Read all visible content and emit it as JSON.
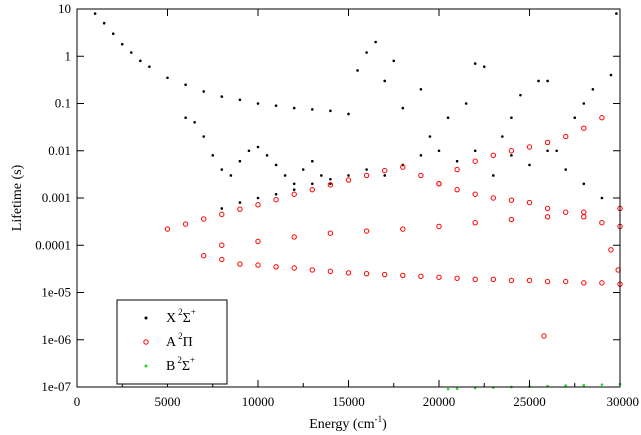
{
  "chart_data": {
    "type": "scatter",
    "title": "",
    "xlabel": "Energy (cm",
    "xlabel_sup": "-1",
    "xlabel_close": ")",
    "ylabel": "Lifetime (s)",
    "xlim": [
      0,
      30000
    ],
    "ylim": [
      1e-07,
      10
    ],
    "yscale": "log",
    "grid": false,
    "legend_position": "bottom-left",
    "x_ticks": [
      {
        "value": 0,
        "label": "0"
      },
      {
        "value": 5000,
        "label": "5000"
      },
      {
        "value": 10000,
        "label": "10000"
      },
      {
        "value": 15000,
        "label": "15000"
      },
      {
        "value": 20000,
        "label": "20000"
      },
      {
        "value": 25000,
        "label": "25000"
      },
      {
        "value": 30000,
        "label": "30000"
      }
    ],
    "y_ticks": [
      {
        "value": 1e-07,
        "label": "1e-07"
      },
      {
        "value": 1e-06,
        "label": "1e-06"
      },
      {
        "value": 1e-05,
        "label": "1e-05"
      },
      {
        "value": 0.0001,
        "label": "0.0001"
      },
      {
        "value": 0.001,
        "label": "0.001"
      },
      {
        "value": 0.01,
        "label": "0.01"
      },
      {
        "value": 0.1,
        "label": "0.1"
      },
      {
        "value": 1,
        "label": "1"
      },
      {
        "value": 10,
        "label": "10"
      }
    ],
    "series": [
      {
        "name": "X",
        "name_sup_left": "2",
        "name_symbol": "Σ",
        "name_sup_right": "+",
        "color": "#000000",
        "marker": "dot",
        "x": [
          1000,
          1500,
          2000,
          2500,
          3000,
          3500,
          4000,
          5000,
          6000,
          7000,
          8000,
          9000,
          10000,
          11000,
          12000,
          13000,
          14000,
          15000,
          6000,
          6500,
          7000,
          7500,
          8000,
          8500,
          9000,
          9500,
          10000,
          10500,
          11000,
          11500,
          12000,
          12500,
          13000,
          13500,
          14000,
          8000,
          9000,
          10000,
          11000,
          12000,
          13000,
          14000,
          15000,
          16000,
          17000,
          18000,
          19000,
          20000,
          21000,
          22000,
          23000,
          24000,
          25000,
          26000,
          27000,
          28000,
          29000,
          15500,
          16000,
          17000,
          18000,
          19000,
          20500,
          21500,
          22500,
          23500,
          24500,
          25500,
          26500,
          27500,
          28500,
          29500,
          16500,
          17500,
          19500,
          22000,
          24000,
          26000,
          28000,
          29800
        ],
        "y": [
          8,
          5,
          3,
          1.8,
          1.2,
          0.8,
          0.6,
          0.35,
          0.25,
          0.18,
          0.14,
          0.12,
          0.1,
          0.09,
          0.08,
          0.075,
          0.07,
          0.06,
          0.05,
          0.04,
          0.02,
          0.008,
          0.004,
          0.003,
          0.006,
          0.01,
          0.012,
          0.008,
          0.005,
          0.003,
          0.002,
          0.004,
          0.006,
          0.003,
          0.002,
          0.0006,
          0.0008,
          0.001,
          0.0012,
          0.0015,
          0.002,
          0.0025,
          0.003,
          0.004,
          0.003,
          0.005,
          0.008,
          0.01,
          0.006,
          0.01,
          0.003,
          0.008,
          0.005,
          0.01,
          0.004,
          0.002,
          0.001,
          0.5,
          1.2,
          0.3,
          0.08,
          0.2,
          0.05,
          0.1,
          0.6,
          0.02,
          0.15,
          0.3,
          0.01,
          0.05,
          0.2,
          0.4,
          2,
          0.8,
          0.02,
          0.7,
          0.05,
          0.3,
          0.1,
          8
        ]
      },
      {
        "name": "A",
        "name_sup_left": "2",
        "name_symbol": "Π",
        "name_sup_right": "",
        "color": "#ff0000",
        "marker": "circle",
        "x": [
          5000,
          6000,
          7000,
          8000,
          9000,
          10000,
          11000,
          12000,
          13000,
          14000,
          15000,
          16000,
          17000,
          18000,
          19000,
          20000,
          21000,
          22000,
          23000,
          24000,
          25000,
          26000,
          27000,
          28000,
          29000,
          30000,
          7000,
          8000,
          9000,
          10000,
          11000,
          12000,
          13000,
          14000,
          15000,
          16000,
          17000,
          18000,
          19000,
          20000,
          21000,
          22000,
          23000,
          24000,
          25000,
          26000,
          27000,
          28000,
          29000,
          30000,
          8000,
          10000,
          12000,
          14000,
          16000,
          18000,
          20000,
          22000,
          24000,
          26000,
          28000,
          30000,
          20000,
          21000,
          22000,
          23000,
          24000,
          25000,
          26000,
          27000,
          28000,
          29000,
          25800,
          29500,
          29900
        ],
        "y": [
          0.00022,
          0.00028,
          0.00036,
          0.00045,
          0.00058,
          0.00072,
          0.00092,
          0.0012,
          0.0015,
          0.0019,
          0.0024,
          0.003,
          0.0038,
          0.0045,
          0.003,
          0.002,
          0.0015,
          0.0012,
          0.001,
          0.0009,
          0.0008,
          0.0006,
          0.0005,
          0.0004,
          0.0003,
          0.00025,
          6e-05,
          5e-05,
          4e-05,
          3.8e-05,
          3.5e-05,
          3.3e-05,
          3e-05,
          2.8e-05,
          2.6e-05,
          2.5e-05,
          2.4e-05,
          2.3e-05,
          2.2e-05,
          2.1e-05,
          2e-05,
          1.9e-05,
          1.9e-05,
          1.8e-05,
          1.8e-05,
          1.7e-05,
          1.7e-05,
          1.6e-05,
          1.6e-05,
          1.5e-05,
          0.0001,
          0.00012,
          0.00015,
          0.00018,
          0.0002,
          0.00022,
          0.00025,
          0.0003,
          0.00035,
          0.0004,
          0.0005,
          0.0006,
          0.002,
          0.004,
          0.006,
          0.008,
          0.01,
          0.012,
          0.015,
          0.02,
          0.03,
          0.05,
          1.2e-06,
          8e-05,
          3e-05
        ]
      },
      {
        "name": "B",
        "name_sup_left": "2",
        "name_symbol": "Σ",
        "name_sup_right": "+",
        "color": "#22dd22",
        "marker": "dot",
        "x": [
          20500,
          21000,
          22000,
          23000,
          24000,
          25000,
          26000,
          27000,
          28000,
          29000,
          30000
        ],
        "y": [
          9e-08,
          9.2e-08,
          9.5e-08,
          9.7e-08,
          1e-07,
          1.02e-07,
          1.05e-07,
          1.07e-07,
          1.09e-07,
          1.12e-07,
          1.15e-07
        ]
      }
    ]
  }
}
